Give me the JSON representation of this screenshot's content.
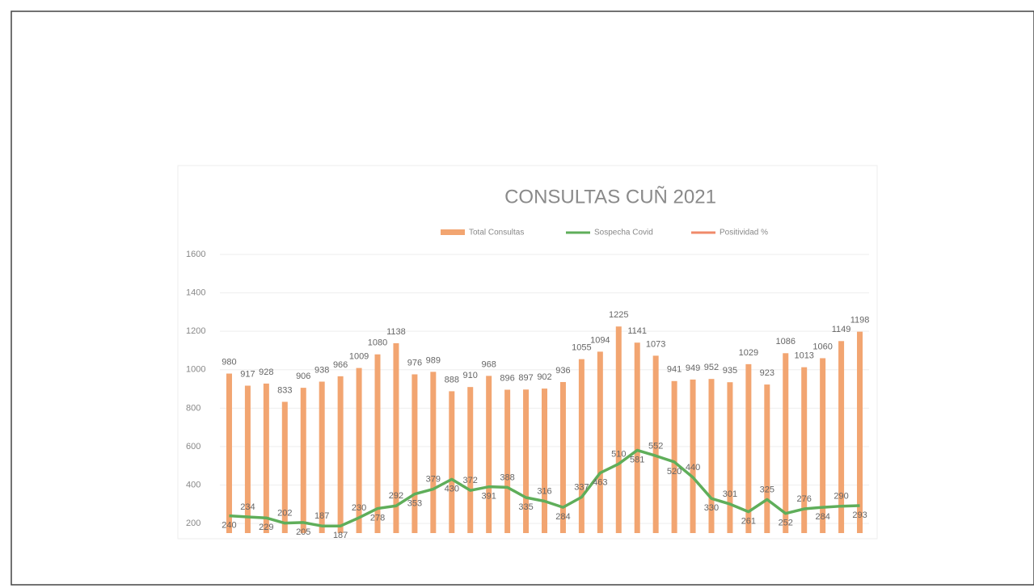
{
  "chart_data": {
    "type": "bar",
    "title": "CONSULTAS CUÑ 2021",
    "categories": [
      null,
      null,
      null,
      null,
      null,
      null,
      null,
      null,
      null,
      null,
      null,
      null,
      null,
      null,
      null,
      null,
      null,
      null,
      null,
      null,
      null,
      null,
      null,
      null,
      null,
      null,
      null,
      null,
      null,
      null,
      null,
      null,
      null,
      null,
      null
    ],
    "series": [
      {
        "name": "Total Consultas",
        "color": "#f2a571",
        "type": "bar",
        "values": [
          980,
          917,
          928,
          833,
          906,
          938,
          966,
          1009,
          1080,
          1138,
          976,
          989,
          888,
          910,
          968,
          896,
          897,
          902,
          936,
          1055,
          1094,
          1225,
          1141,
          1073,
          941,
          949,
          952,
          935,
          1029,
          923,
          1086,
          1013,
          1060,
          1149,
          1198
        ]
      },
      {
        "name": "Sospecha Covid",
        "color": "#5fae5a",
        "type": "line",
        "values": [
          240,
          234,
          229,
          202,
          205,
          187,
          187,
          230,
          278,
          292,
          353,
          379,
          430,
          372,
          391,
          388,
          335,
          316,
          284,
          337,
          463,
          510,
          581,
          552,
          520,
          440,
          330,
          301,
          261,
          325,
          252,
          276,
          284,
          290,
          293
        ]
      },
      {
        "name": "Positividad %",
        "color": "#f08a6a",
        "type": "line",
        "values": [
          null,
          null,
          null,
          null,
          null,
          null,
          null,
          null,
          null,
          null,
          null,
          null,
          null,
          null,
          null,
          null,
          null,
          null,
          null,
          null,
          null,
          null,
          null,
          null,
          null,
          null,
          null,
          null,
          null,
          null,
          null,
          null,
          null,
          null,
          null
        ]
      }
    ],
    "ylim": [
      150,
      1600
    ],
    "yticks": [
      200,
      400,
      600,
      800,
      1000,
      1200,
      1400,
      1600
    ],
    "grid": true
  }
}
